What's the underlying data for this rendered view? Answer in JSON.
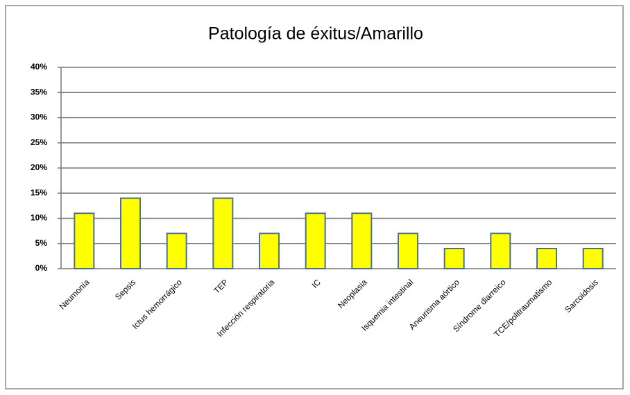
{
  "chart_data": {
    "type": "bar",
    "title": "Patología de éxitus/Amarillo",
    "categories": [
      "Neumonía",
      "Sepsis",
      "Ictus hemorrágico",
      "TEP",
      "Infección respiratoria",
      "IC",
      "Neoplasia",
      "Isquemia intestinal",
      "Aneurisma aórtico",
      "Síndrome diarreico",
      "TCE/politraumatismo",
      "Sarcoidosis"
    ],
    "values": [
      11,
      14,
      7,
      14,
      7,
      11,
      11,
      7,
      4,
      7,
      4,
      4
    ],
    "color": "#ffff00",
    "ylim": [
      0,
      40
    ],
    "yticks": [
      {
        "value": 0,
        "label": "0%"
      },
      {
        "value": 5,
        "label": "5%"
      },
      {
        "value": 10,
        "label": "10%"
      },
      {
        "value": 15,
        "label": "15%"
      },
      {
        "value": 20,
        "label": "20%"
      },
      {
        "value": 25,
        "label": "25%"
      },
      {
        "value": 30,
        "label": "30%"
      },
      {
        "value": 35,
        "label": "35%"
      },
      {
        "value": 40,
        "label": "40%"
      }
    ],
    "grid": true
  }
}
